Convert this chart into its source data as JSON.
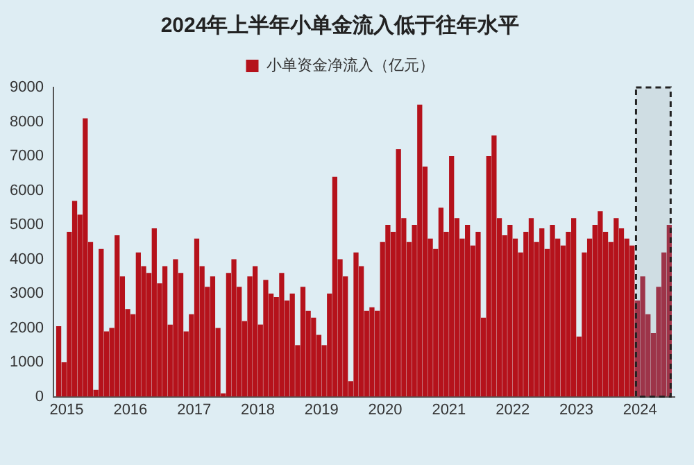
{
  "chart_data": {
    "type": "bar",
    "title": "2024年上半年小单金流入低于往年水平",
    "legend": "top",
    "grid": false,
    "x": [
      "2014-11",
      "2014-12",
      "2015-01",
      "2015-02",
      "2015-03",
      "2015-04",
      "2015-05",
      "2015-06",
      "2015-07",
      "2015-08",
      "2015-09",
      "2015-10",
      "2015-11",
      "2015-12",
      "2016-01",
      "2016-02",
      "2016-03",
      "2016-04",
      "2016-05",
      "2016-06",
      "2016-07",
      "2016-08",
      "2016-09",
      "2016-10",
      "2016-11",
      "2016-12",
      "2017-01",
      "2017-02",
      "2017-03",
      "2017-04",
      "2017-05",
      "2017-06",
      "2017-07",
      "2017-08",
      "2017-09",
      "2017-10",
      "2017-11",
      "2017-12",
      "2018-01",
      "2018-02",
      "2018-03",
      "2018-04",
      "2018-05",
      "2018-06",
      "2018-07",
      "2018-08",
      "2018-09",
      "2018-10",
      "2018-11",
      "2018-12",
      "2019-01",
      "2019-02",
      "2019-03",
      "2019-04",
      "2019-05",
      "2019-06",
      "2019-07",
      "2019-08",
      "2019-09",
      "2019-10",
      "2019-11",
      "2019-12",
      "2020-01",
      "2020-02",
      "2020-03",
      "2020-04",
      "2020-05",
      "2020-06",
      "2020-07",
      "2020-08",
      "2020-09",
      "2020-10",
      "2020-11",
      "2020-12",
      "2021-01",
      "2021-02",
      "2021-03",
      "2021-04",
      "2021-05",
      "2021-06",
      "2021-07",
      "2021-08",
      "2021-09",
      "2021-10",
      "2021-11",
      "2021-12",
      "2022-01",
      "2022-02",
      "2022-03",
      "2022-04",
      "2022-05",
      "2022-06",
      "2022-07",
      "2022-08",
      "2022-09",
      "2022-10",
      "2022-11",
      "2022-12",
      "2023-01",
      "2023-02",
      "2023-03",
      "2023-04",
      "2023-05",
      "2023-06",
      "2023-07",
      "2023-08",
      "2023-09",
      "2023-10",
      "2023-11"
    ],
    "series": [
      {
        "name": "小单资金净流入（亿元）",
        "color": "#b5121b",
        "values": [
          2050,
          1000,
          4800,
          5700,
          5300,
          8100,
          4500,
          200,
          4300,
          1900,
          2000,
          4700,
          3500,
          2550,
          2400,
          4200,
          3800,
          3600,
          4900,
          3300,
          3800,
          2100,
          4000,
          3600,
          1900,
          2400,
          4600,
          3800,
          3200,
          3500,
          2000,
          100,
          3600,
          4000,
          3200,
          2200,
          3500,
          3800,
          2100,
          3400,
          3000,
          2900,
          3600,
          2800,
          3000,
          1500,
          3200,
          2500,
          2300,
          1800,
          1500,
          3000,
          6400,
          4000,
          3500,
          450,
          4200,
          3800,
          2500,
          2600,
          2500,
          4500,
          5000,
          4800,
          7200,
          5200,
          4500,
          5000,
          8500,
          6700,
          4600,
          4300,
          5500,
          4800,
          7000,
          5200,
          4600,
          5000,
          4400,
          4800,
          2300,
          7000,
          7600,
          5200,
          4700,
          5000,
          4600,
          4200,
          4800,
          5200,
          4500,
          4900,
          4300,
          5000,
          4600,
          4400,
          4800,
          5200,
          1750,
          4200,
          4600,
          5000,
          5400,
          4800,
          4500,
          5200,
          4900,
          4600,
          4400
        ]
      },
      {
        "color": "#a8364c",
        "x": [
          "2023-12",
          "2024-01",
          "2024-02",
          "2024-03",
          "2024-04",
          "2024-05",
          "2024-06"
        ],
        "values": [
          2800,
          3500,
          2400,
          1850,
          3200,
          4200,
          5000
        ]
      }
    ],
    "xlim": [
      "2014-10",
      "2024-07"
    ],
    "xticks": [
      "2015",
      "2016",
      "2017",
      "2018",
      "2019",
      "2020",
      "2021",
      "2022",
      "2023",
      "2024"
    ],
    "ylim": [
      0,
      9000
    ],
    "yticks": [
      0,
      1000,
      2000,
      3000,
      4000,
      5000,
      6000,
      7000,
      8000,
      9000
    ],
    "bands": [
      {
        "axis": "x",
        "from": "2023-12",
        "to": "2024-06",
        "color": "#222222"
      }
    ]
  }
}
